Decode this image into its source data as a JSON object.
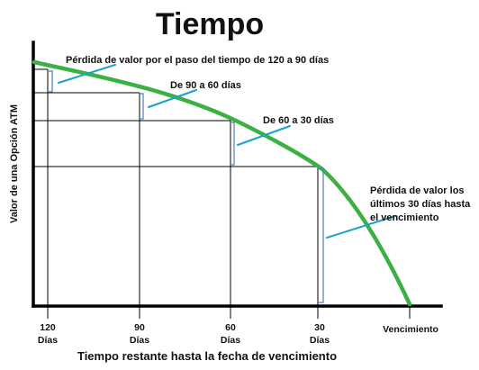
{
  "title": "Tiempo",
  "ylabel": "Valor de una Opción ATM",
  "xlabel": "Tiempo restante hasta la fecha de vencimiento",
  "ticks": [
    {
      "line1": "120",
      "line2": "Días"
    },
    {
      "line1": "90",
      "line2": "Días"
    },
    {
      "line1": "60",
      "line2": "Días"
    },
    {
      "line1": "30",
      "line2": "Días"
    },
    {
      "line1": "Vencimiento",
      "line2": ""
    }
  ],
  "annotations": {
    "a1": "Pérdida de valor por el paso del tiempo de 120 a 90 días",
    "a2": "De 90 a 60 días",
    "a3": "De 60 a 30 días",
    "a4_l1": "Pérdida de valor los",
    "a4_l2": "últimos 30 días hasta",
    "a4_l3": "el vencimiento"
  },
  "colors": {
    "curve": "#3cb043",
    "bracket": "#4a7fc1",
    "pointer": "#1aa3c9",
    "axis": "#000000",
    "grid": "#000000"
  }
}
